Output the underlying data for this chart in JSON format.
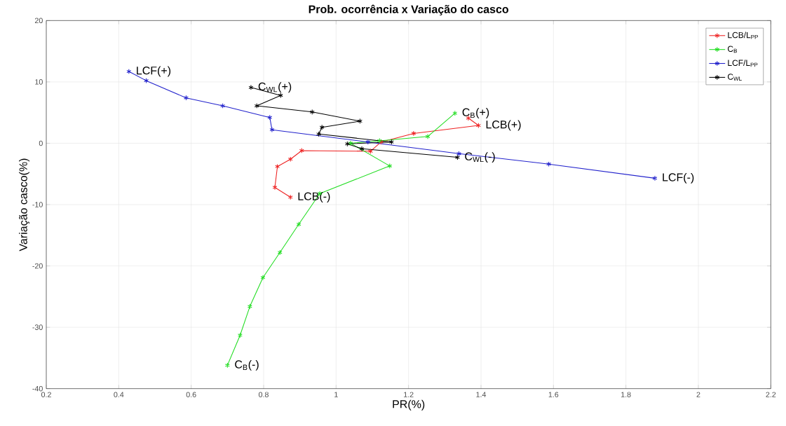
{
  "chart_data": {
    "type": "line",
    "title": "Prob. ocorrência x Variação do casco",
    "xlabel": "PR(%)",
    "ylabel": "Variação casco(%)",
    "xlim": [
      0.2,
      2.2
    ],
    "ylim": [
      -40,
      20
    ],
    "xticks": [
      0.2,
      0.4,
      0.6,
      0.8,
      1,
      1.2,
      1.4,
      1.6,
      1.8,
      2,
      2.2
    ],
    "yticks": [
      -40,
      -30,
      -20,
      -10,
      0,
      10,
      20
    ],
    "grid": true,
    "legend": "top right",
    "marker": "cross",
    "line_style": "solid",
    "series": [
      {
        "name": "LCB/L$_{PP}$",
        "color": "#ee2222",
        "x": [
          1.365,
          1.393,
          1.214,
          1.124,
          1.095,
          0.905,
          0.874,
          0.838,
          0.831,
          0.874
        ],
        "values": [
          4.1,
          2.9,
          1.6,
          0.2,
          -1.3,
          -1.2,
          -2.6,
          -3.8,
          -7.2,
          -8.8
        ]
      },
      {
        "name": "C$_{B}$",
        "color": "#22dd22",
        "x": [
          1.328,
          1.253,
          1.12,
          1.04,
          1.148,
          0.955,
          0.897,
          0.845,
          0.798,
          0.762,
          0.735,
          0.7
        ],
        "values": [
          4.9,
          1.1,
          0.4,
          0.0,
          -3.7,
          -8.2,
          -13.2,
          -17.8,
          -21.9,
          -26.6,
          -31.3,
          -36.2
        ]
      },
      {
        "name": "LCF/L$_{PP}$",
        "color": "#2222cc",
        "x": [
          0.428,
          0.476,
          0.586,
          0.687,
          0.817,
          0.823,
          1.088,
          1.339,
          1.587,
          1.88
        ],
        "values": [
          11.7,
          10.2,
          7.4,
          6.1,
          4.2,
          2.2,
          0.2,
          -1.7,
          -3.4,
          -5.7
        ]
      },
      {
        "name": "C$_{WL}$",
        "color": "#000000",
        "x": [
          0.765,
          0.847,
          0.781,
          0.934,
          1.066,
          0.961,
          0.952,
          1.153,
          1.031,
          1.071,
          1.335
        ],
        "values": [
          9.1,
          7.8,
          6.1,
          5.1,
          3.6,
          2.6,
          1.5,
          0.2,
          -0.1,
          -0.9,
          -2.3
        ]
      }
    ],
    "annotations": [
      {
        "text": "LCF(+)",
        "x": 0.428,
        "y": 11.7
      },
      {
        "text": "C$_{WL}$(+)",
        "x": 0.765,
        "y": 9.1
      },
      {
        "text": "C$_{B}$(+)",
        "x": 1.328,
        "y": 4.9
      },
      {
        "text": "LCB(+)",
        "x": 1.393,
        "y": 2.9
      },
      {
        "text": "C$_{WL}$(-)",
        "x": 1.335,
        "y": -2.3
      },
      {
        "text": "LCF(-)",
        "x": 1.88,
        "y": -5.7
      },
      {
        "text": "LCB(-)",
        "x": 0.874,
        "y": -8.8
      },
      {
        "text": "C$_{B}$(-)",
        "x": 0.7,
        "y": -36.2
      }
    ]
  }
}
